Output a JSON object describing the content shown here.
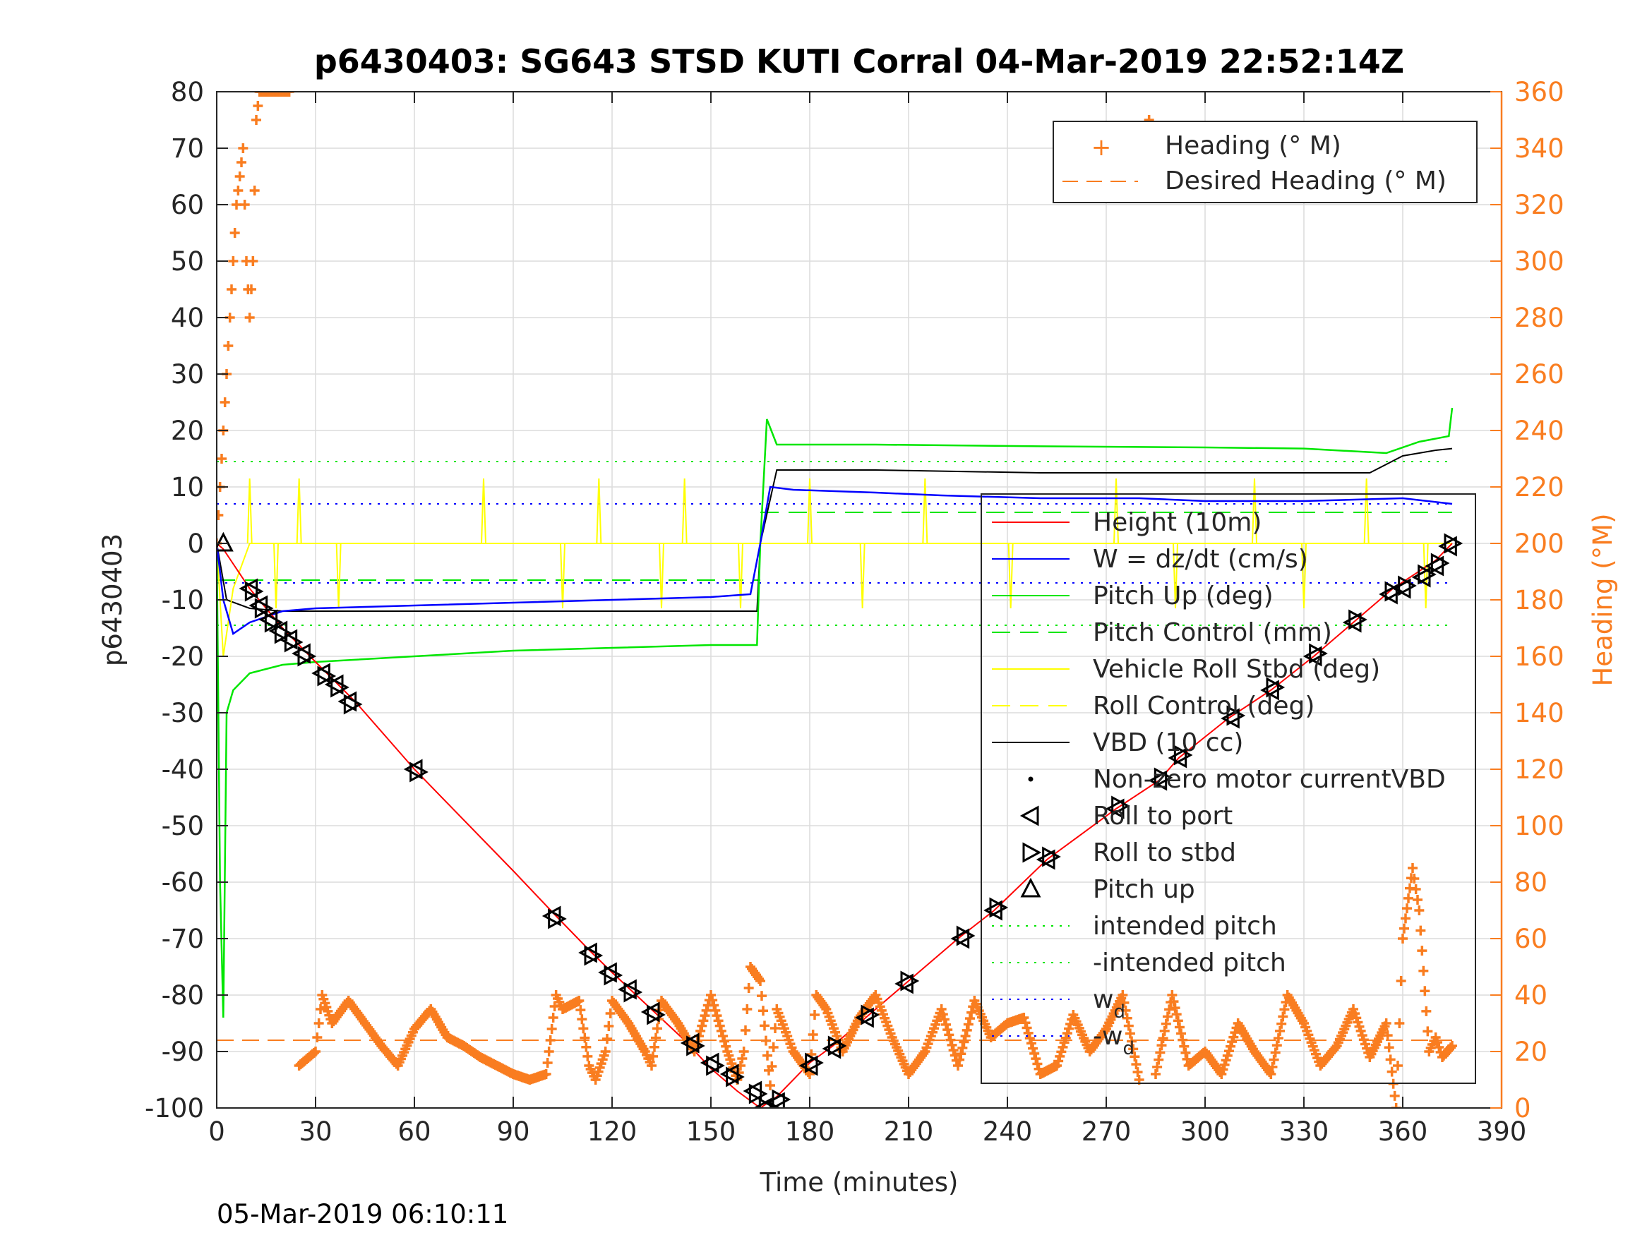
{
  "chart_data": {
    "type": "line",
    "title": "p6430403: SG643 STSD KUTI Corral 04-Mar-2019 22:52:14Z",
    "xlabel": "Time (minutes)",
    "ylabel": "p6430403",
    "y2label": "Heading (°M)",
    "footer": "05-Mar-2019 06:10:11",
    "xlim": [
      0,
      390
    ],
    "ylim": [
      -100,
      80
    ],
    "y2lim": [
      0,
      360
    ],
    "grid": true,
    "xticks": [
      "0",
      "30",
      "60",
      "90",
      "120",
      "150",
      "180",
      "210",
      "240",
      "270",
      "300",
      "330",
      "360",
      "390"
    ],
    "yticks": [
      "80",
      "70",
      "60",
      "50",
      "40",
      "30",
      "20",
      "10",
      "0",
      "-10",
      "-20",
      "-30",
      "-40",
      "-50",
      "-60",
      "-70",
      "-80",
      "-90",
      "-100"
    ],
    "y2ticks": [
      "360",
      "340",
      "320",
      "300",
      "280",
      "260",
      "240",
      "220",
      "200",
      "180",
      "160",
      "140",
      "120",
      "100",
      "80",
      "60",
      "40",
      "20",
      "0"
    ],
    "colors": {
      "height": "#ff0000",
      "w": "#0000ff",
      "pitch": "#00e600",
      "roll": "#ffff00",
      "vbd": "#000000",
      "heading": "#f97d20"
    },
    "legend_heading": {
      "placement": "top-right",
      "entries": [
        "Heading (° M)",
        "Desired Heading (° M)"
      ]
    },
    "legend_main": {
      "placement": "lower-right",
      "entries": [
        {
          "key": "height",
          "label": "Height (10m)"
        },
        {
          "key": "w",
          "label": "W = dz/dt (cm/s)"
        },
        {
          "key": "pitch",
          "label": "Pitch Up (deg)"
        },
        {
          "key": "pitch_ctrl",
          "label": "Pitch Control (mm)"
        },
        {
          "key": "roll",
          "label": "Vehicle Roll Stbd (deg)"
        },
        {
          "key": "roll_ctrl",
          "label": "Roll Control (deg)"
        },
        {
          "key": "vbd",
          "label": "VBD (10 cc)"
        },
        {
          "key": "motor",
          "label": "Non-zero motor currentVBD"
        },
        {
          "key": "roll_port",
          "label": "Roll to port"
        },
        {
          "key": "roll_stbd",
          "label": "Roll to stbd"
        },
        {
          "key": "pitch_up",
          "label": "Pitch up"
        },
        {
          "key": "int_pitch",
          "label": "intended pitch"
        },
        {
          "key": "neg_int_pitch",
          "label": "-intended pitch"
        },
        {
          "key": "wd",
          "label": "w",
          "sub": "d"
        },
        {
          "key": "neg_wd",
          "label": "-w",
          "sub": "d"
        }
      ]
    },
    "reference_lines": {
      "intended_pitch": 14.5,
      "neg_intended_pitch": -14.5,
      "wd": 7,
      "neg_wd": -7,
      "pitch_control_dive": -6.5,
      "pitch_control_climb": 5.5,
      "roll_control": 0,
      "desired_heading": 24
    },
    "series": [
      {
        "name": "Height (10m)",
        "x": [
          0,
          2,
          10,
          20,
          30,
          42,
          60,
          90,
          103,
          113,
          120,
          131,
          142,
          150,
          158,
          165,
          170,
          180,
          187,
          197,
          209,
          225,
          236,
          252,
          273,
          286,
          292,
          307,
          320,
          333,
          345,
          357,
          370,
          375
        ],
        "y": [
          0,
          -1,
          -8,
          -15,
          -21,
          -28,
          -40,
          -58,
          -66,
          -72,
          -76,
          -82,
          -88,
          -93,
          -97,
          -100,
          -98,
          -92,
          -89,
          -84,
          -78,
          -70,
          -65,
          -56,
          -47,
          -42,
          -38,
          -31,
          -26,
          -20,
          -14,
          -8,
          -3,
          0
        ]
      },
      {
        "name": "W = dz/dt (cm/s)",
        "x": [
          0,
          2,
          5,
          10,
          20,
          30,
          60,
          90,
          120,
          150,
          162,
          165,
          168,
          175,
          200,
          220,
          250,
          280,
          300,
          330,
          360,
          375
        ],
        "y": [
          0,
          -10,
          -16,
          -14,
          -12,
          -11.5,
          -11,
          -10.5,
          -10,
          -9.5,
          -9,
          0,
          10,
          9.5,
          9,
          8.5,
          8,
          8,
          7.5,
          7.5,
          8,
          7
        ]
      },
      {
        "name": "Pitch Up (deg)",
        "x": [
          0,
          1,
          2,
          3,
          5,
          10,
          20,
          30,
          60,
          90,
          120,
          150,
          164,
          165,
          167,
          170,
          200,
          250,
          300,
          330,
          355,
          365,
          374,
          375
        ],
        "y": [
          0,
          -60,
          -84,
          -30,
          -26,
          -23,
          -21.5,
          -21,
          -20,
          -19,
          -18.5,
          -18,
          -18,
          0,
          22,
          17.5,
          17.5,
          17.2,
          17,
          16.8,
          16,
          18,
          19,
          24
        ]
      },
      {
        "name": "Vehicle Roll Stbd (deg)",
        "x": [
          0,
          2,
          5,
          10,
          30,
          60,
          90,
          120,
          165,
          170,
          200,
          250,
          300,
          330,
          365,
          375
        ],
        "y": [
          0,
          -20,
          -8,
          0,
          0,
          0,
          0,
          0,
          0,
          0,
          0,
          0,
          0,
          0,
          0,
          0
        ]
      },
      {
        "name": "VBD (10 cc)",
        "x": [
          0,
          3,
          10,
          20,
          60,
          150,
          164,
          165,
          170,
          200,
          250,
          300,
          350,
          355,
          360,
          370,
          375
        ],
        "y": [
          0,
          -10,
          -11.5,
          -12,
          -12,
          -12,
          -12,
          0,
          13,
          13,
          12.5,
          12.5,
          12.5,
          14,
          15.5,
          16.5,
          16.8
        ]
      },
      {
        "name": "Heading (° M)",
        "axis": "right",
        "x": [
          0,
          2,
          4,
          6,
          8,
          9,
          10,
          11,
          12,
          13,
          15,
          17,
          20,
          22,
          25,
          30,
          32,
          35,
          40,
          45,
          50,
          55,
          60,
          65,
          70,
          75,
          80,
          85,
          90,
          95,
          100,
          103,
          105,
          110,
          113,
          115,
          118,
          120,
          125,
          130,
          132,
          135,
          140,
          145,
          150,
          155,
          158,
          160,
          162,
          165,
          168,
          170,
          175,
          180,
          182,
          185,
          190,
          195,
          200,
          205,
          210,
          215,
          220,
          225,
          230,
          235,
          240,
          245,
          250,
          255,
          260,
          265,
          270,
          275,
          280,
          283,
          285,
          290,
          295,
          300,
          305,
          310,
          315,
          320,
          325,
          330,
          335,
          340,
          345,
          350,
          355,
          358,
          360,
          363,
          365,
          368,
          370,
          372,
          375
        ],
        "y": [
          200,
          240,
          280,
          320,
          340,
          300,
          280,
          300,
          350,
          360,
          360,
          360,
          360,
          360,
          15,
          20,
          40,
          30,
          38,
          30,
          22,
          15,
          28,
          35,
          25,
          22,
          18,
          15,
          12,
          10,
          12,
          40,
          35,
          38,
          15,
          10,
          20,
          38,
          30,
          20,
          15,
          38,
          30,
          20,
          40,
          20,
          10,
          20,
          50,
          45,
          8,
          35,
          20,
          12,
          40,
          35,
          20,
          32,
          40,
          25,
          12,
          20,
          35,
          15,
          38,
          25,
          30,
          32,
          12,
          15,
          33,
          20,
          28,
          40,
          10,
          350,
          12,
          40,
          15,
          20,
          12,
          30,
          20,
          12,
          40,
          30,
          15,
          22,
          35,
          18,
          30,
          0,
          60,
          85,
          70,
          20,
          25,
          18,
          22
        ]
      }
    ],
    "markers": {
      "roll_port": {
        "x": [
          10,
          13,
          16,
          19,
          22,
          26,
          32,
          36,
          40,
          60,
          102,
          113,
          119,
          125,
          132,
          144,
          150,
          156,
          163,
          166,
          170,
          180,
          187,
          197,
          209,
          226,
          236,
          252,
          273,
          286,
          292,
          308,
          320,
          333,
          345,
          356,
          360,
          366,
          370,
          374
        ],
        "y": [
          -8,
          -11,
          -13.5,
          -15.5,
          -17,
          -19.5,
          -23,
          -25,
          -28,
          -40,
          -66,
          -72.5,
          -76,
          -79,
          -83,
          -88.5,
          -92,
          -94,
          -97,
          -100,
          -99,
          -92.5,
          -89.5,
          -84,
          -78,
          -70,
          -65,
          -56,
          -47,
          -42,
          -38,
          -31,
          -26,
          -20,
          -14,
          -9,
          -8,
          -6,
          -4,
          -0.5
        ]
      },
      "roll_stbd": {
        "x": [
          11,
          14,
          17,
          20,
          23,
          27,
          33,
          37,
          41,
          61,
          103,
          114,
          120,
          126,
          133,
          145,
          151,
          157,
          164,
          167,
          171,
          181,
          188,
          198,
          210,
          227,
          237,
          253,
          274,
          287,
          293,
          309,
          321,
          334,
          346,
          357,
          361,
          367,
          371,
          375
        ],
        "y": [
          -8.5,
          -11.5,
          -14,
          -16,
          -17.5,
          -20,
          -23.5,
          -25.5,
          -28.5,
          -40.5,
          -66.5,
          -73,
          -76.5,
          -79.5,
          -83.5,
          -89,
          -92.5,
          -94.5,
          -97.5,
          -100,
          -98.5,
          -92,
          -89,
          -83.5,
          -77.5,
          -69.5,
          -64.5,
          -55.5,
          -46.5,
          -41.5,
          -37.5,
          -30.5,
          -25.5,
          -19.5,
          -13.5,
          -8.5,
          -7.5,
          -5.5,
          -3.5,
          0
        ]
      },
      "pitch_up": {
        "x": [
          2
        ],
        "y": [
          0
        ]
      }
    }
  }
}
